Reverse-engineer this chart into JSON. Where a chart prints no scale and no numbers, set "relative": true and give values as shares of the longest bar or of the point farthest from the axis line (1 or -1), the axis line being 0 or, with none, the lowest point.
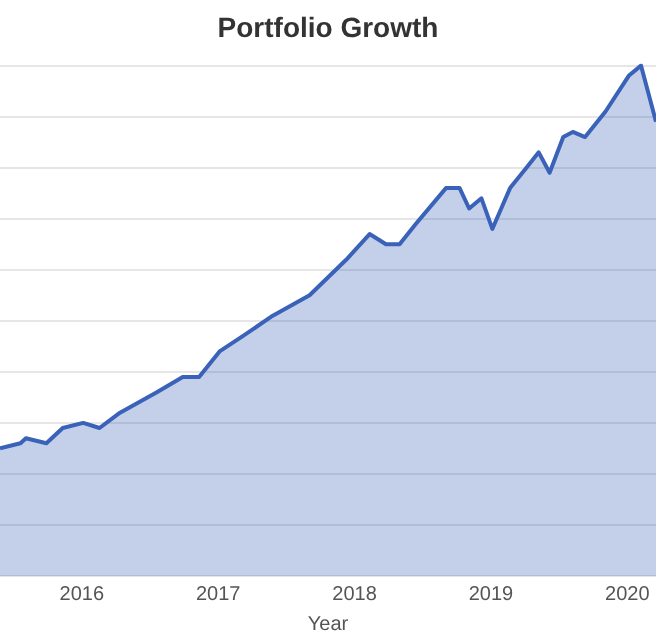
{
  "chart_data": {
    "type": "area",
    "title": "Portfolio Growth",
    "xlabel": "Year",
    "relative": true,
    "grid": "y",
    "legend": false,
    "marker": "none",
    "tick_labels": "x",
    "xlim": [
      2015.4,
      2020.21
    ],
    "xticks": [
      2016,
      2017,
      2018,
      2019,
      2020
    ],
    "series": [
      {
        "color": "#3a62b8",
        "x": [
          2015.4,
          2015.55,
          2015.59,
          2015.74,
          2015.86,
          2016.01,
          2016.13,
          2016.28,
          2016.55,
          2016.74,
          2016.86,
          2017.01,
          2017.18,
          2017.4,
          2017.67,
          2017.94,
          2018.11,
          2018.23,
          2018.33,
          2018.45,
          2018.67,
          2018.77,
          2018.84,
          2018.93,
          2019.01,
          2019.14,
          2019.26,
          2019.35,
          2019.43,
          2019.53,
          2019.6,
          2019.69,
          2019.84,
          2020.01,
          2020.1,
          2020.21
        ],
        "values": [
          0.25,
          0.26,
          0.27,
          0.26,
          0.29,
          0.3,
          0.29,
          0.32,
          0.36,
          0.39,
          0.39,
          0.44,
          0.47,
          0.51,
          0.55,
          0.62,
          0.67,
          0.65,
          0.65,
          0.69,
          0.76,
          0.76,
          0.72,
          0.74,
          0.68,
          0.76,
          0.8,
          0.83,
          0.79,
          0.86,
          0.87,
          0.86,
          0.91,
          0.98,
          1.0,
          0.89
        ]
      }
    ]
  }
}
